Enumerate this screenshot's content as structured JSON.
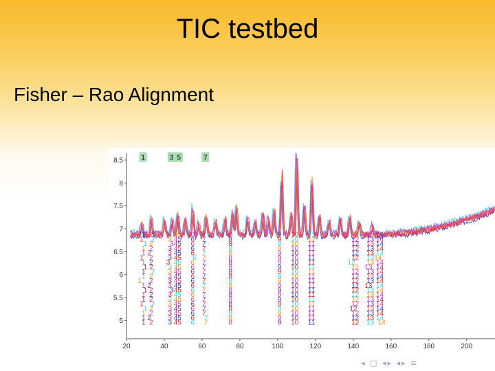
{
  "slide": {
    "title": "TIC testbed",
    "subtitle": "Fisher – Rao Alignment"
  },
  "nav": {
    "prev_section": "◂",
    "prev_frame": "◂▸",
    "frame_icon": "□",
    "next_frame": "◂▸",
    "equiv": "≡"
  },
  "colors": {
    "background_top": "#f9b92a",
    "background_bottom": "#ffffff",
    "badge_fill": "#a8dcb0",
    "series": [
      "#2d3cc8",
      "#e02020",
      "#3bd0e8",
      "#ff8c1a",
      "#c040c0",
      "#7a2a8c",
      "#e83a70"
    ]
  },
  "chart_data": {
    "type": "line",
    "title": "",
    "xlabel": "",
    "ylabel": "",
    "xlim": [
      20,
      215
    ],
    "ylim": [
      4.6,
      8.65
    ],
    "x_ticks": [
      20,
      40,
      60,
      80,
      100,
      120,
      140,
      160,
      180,
      200
    ],
    "y_ticks": [
      5,
      5.5,
      6,
      6.5,
      7,
      7.5,
      8,
      8.5
    ],
    "y_tick_labels": [
      "5",
      "5.5",
      "6",
      "6.5",
      "7",
      "7.5",
      "8",
      "8.5"
    ],
    "baseline": 6.88,
    "peaks": [
      {
        "x": 28,
        "h": 0.25
      },
      {
        "x": 33,
        "h": 0.35
      },
      {
        "x": 40,
        "h": 0.3
      },
      {
        "x": 44,
        "h": 0.3
      },
      {
        "x": 47,
        "h": 0.45
      },
      {
        "x": 51,
        "h": 0.35
      },
      {
        "x": 55,
        "h": 0.55
      },
      {
        "x": 58,
        "h": 0.25
      },
      {
        "x": 62,
        "h": 0.4
      },
      {
        "x": 67,
        "h": 0.3
      },
      {
        "x": 72,
        "h": 0.35
      },
      {
        "x": 76,
        "h": 0.45
      },
      {
        "x": 78,
        "h": 0.6
      },
      {
        "x": 84,
        "h": 0.35
      },
      {
        "x": 88,
        "h": 0.3
      },
      {
        "x": 92,
        "h": 0.45
      },
      {
        "x": 95,
        "h": 0.4
      },
      {
        "x": 98,
        "h": 0.5
      },
      {
        "x": 102,
        "h": 1.3
      },
      {
        "x": 107,
        "h": 0.45
      },
      {
        "x": 110,
        "h": 1.85
      },
      {
        "x": 114,
        "h": 0.6
      },
      {
        "x": 118,
        "h": 1.15
      },
      {
        "x": 122,
        "h": 0.4
      },
      {
        "x": 127,
        "h": 0.3
      },
      {
        "x": 133,
        "h": 0.35
      },
      {
        "x": 138,
        "h": 0.4
      },
      {
        "x": 143,
        "h": 0.3
      },
      {
        "x": 150,
        "h": 0.2
      }
    ],
    "series": [
      {
        "color": "#2d3cc8",
        "offset": -0.12,
        "shift": 0.0
      },
      {
        "color": "#e02020",
        "offset": -0.05,
        "shift": 0.4
      },
      {
        "color": "#3bd0e8",
        "offset": 0.12,
        "shift": -0.4
      },
      {
        "color": "#ff8c1a",
        "offset": 0.0,
        "shift": 0.2
      },
      {
        "color": "#c040c0",
        "offset": 0.05,
        "shift": -0.2
      },
      {
        "color": "#e83a70",
        "offset": -0.02,
        "shift": 0.6
      }
    ],
    "peak_badges": [
      {
        "x": 27.5,
        "label": "1"
      },
      {
        "x": 42.5,
        "label": "3"
      },
      {
        "x": 46.5,
        "label": "5"
      },
      {
        "x": 60.5,
        "label": "7"
      }
    ],
    "peak_label_columns": [
      {
        "x": 28,
        "label": "1",
        "row_shift": [
          0,
          -1,
          1,
          0,
          0,
          -1,
          0,
          1,
          0,
          0,
          -2,
          0,
          1,
          0,
          0,
          -1,
          1,
          0,
          0,
          0
        ]
      },
      {
        "x": 32,
        "label": "2",
        "row_shift": [
          0,
          1,
          0,
          0,
          -1,
          0,
          0,
          0,
          1,
          0,
          0,
          -1,
          0,
          0,
          0,
          1,
          0,
          0,
          -1,
          0
        ]
      },
      {
        "x": 42,
        "label": "3",
        "row_shift": [
          0,
          0,
          1,
          0,
          0,
          0,
          -1,
          0,
          0,
          0,
          0,
          0,
          1,
          0,
          0,
          0,
          0,
          0,
          0,
          0
        ]
      },
      {
        "x": 45,
        "label": "45",
        "row_shift": [
          0,
          0,
          0,
          0,
          0,
          0,
          0,
          0,
          0,
          0,
          0,
          0,
          0,
          0,
          0,
          0,
          0,
          0,
          0,
          0
        ]
      },
      {
        "x": 54,
        "label": "6",
        "row_shift": [
          0,
          0,
          0,
          0,
          0,
          1,
          0,
          0,
          0,
          0,
          0,
          0,
          0,
          0,
          0,
          0,
          0,
          0,
          0,
          0
        ]
      },
      {
        "x": 60,
        "label": "7",
        "row_shift": [
          0,
          0,
          0,
          0,
          0,
          0,
          0,
          0,
          0,
          0,
          0,
          0,
          0,
          0,
          0,
          0,
          0,
          0,
          1,
          1
        ]
      },
      {
        "x": 74,
        "label": "8",
        "row_shift": [
          0,
          0,
          0,
          0,
          0,
          0,
          0,
          0,
          0,
          0,
          0,
          0,
          0,
          0,
          0,
          0,
          0,
          0,
          0,
          0
        ]
      },
      {
        "x": 100,
        "label": "9",
        "row_shift": [
          0,
          0,
          0,
          0,
          0,
          0,
          0,
          0,
          0,
          0,
          0,
          0,
          0,
          0,
          0,
          0,
          0,
          0,
          0,
          0
        ]
      },
      {
        "x": 107,
        "label": "10",
        "row_shift": [
          0,
          0,
          0,
          0,
          0,
          0,
          0,
          0,
          0,
          0,
          0,
          0,
          0,
          0,
          0,
          0,
          0,
          0,
          0,
          0
        ]
      },
      {
        "x": 116,
        "label": "11",
        "row_shift": [
          0,
          0,
          0,
          0,
          0,
          0,
          0,
          0,
          0,
          0,
          0,
          0,
          0,
          0,
          0,
          0,
          0,
          0,
          0,
          0
        ]
      },
      {
        "x": 139,
        "label": "12",
        "row_shift": [
          0,
          0,
          0,
          0,
          0,
          0,
          -2,
          0,
          0,
          0,
          0,
          0,
          0,
          0,
          0,
          0,
          -1,
          0,
          0,
          0
        ]
      },
      {
        "x": 147,
        "label": "13",
        "row_shift": [
          0,
          0,
          0,
          0,
          0,
          0,
          0,
          -1,
          0,
          0,
          0,
          -1,
          0,
          0,
          0,
          0,
          0,
          0,
          0,
          0
        ]
      },
      {
        "x": 152,
        "label": "14",
        "row_shift": [
          0,
          0,
          0,
          0,
          0,
          -1,
          0,
          0,
          0,
          0,
          0,
          0,
          0,
          0,
          0,
          0,
          0,
          0,
          0,
          1
        ]
      }
    ],
    "label_rows": 20
  }
}
